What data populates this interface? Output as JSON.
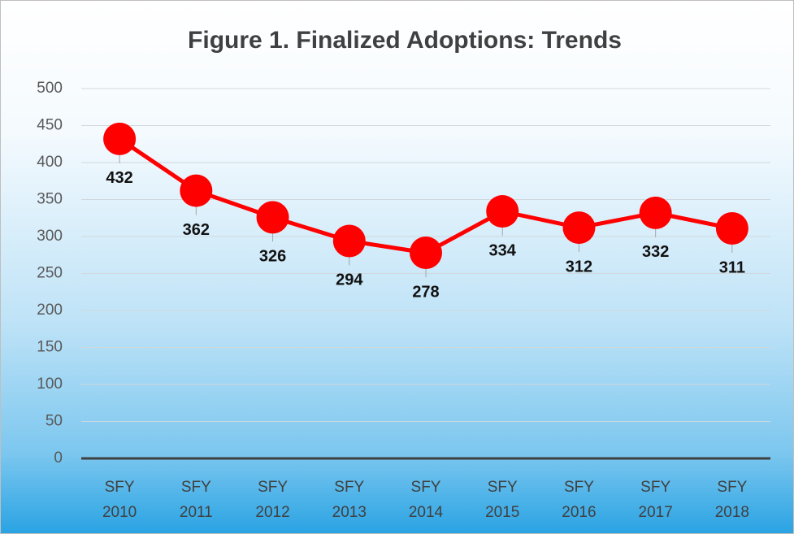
{
  "chart_data": {
    "type": "line",
    "title": "Figure 1. Finalized Adoptions: Trends",
    "categories": [
      "SFY 2010",
      "SFY 2011",
      "SFY 2012",
      "SFY 2013",
      "SFY 2014",
      "SFY 2015",
      "SFY 2016",
      "SFY 2017",
      "SFY 2018"
    ],
    "series": [
      {
        "name": "Finalized Adoptions",
        "color": "#ff0000",
        "values": [
          432,
          362,
          326,
          294,
          278,
          334,
          312,
          332,
          311
        ]
      }
    ],
    "ylim": [
      0,
      500
    ],
    "yticks": [
      0,
      50,
      100,
      150,
      200,
      250,
      300,
      350,
      400,
      450,
      500
    ],
    "grid": true
  }
}
